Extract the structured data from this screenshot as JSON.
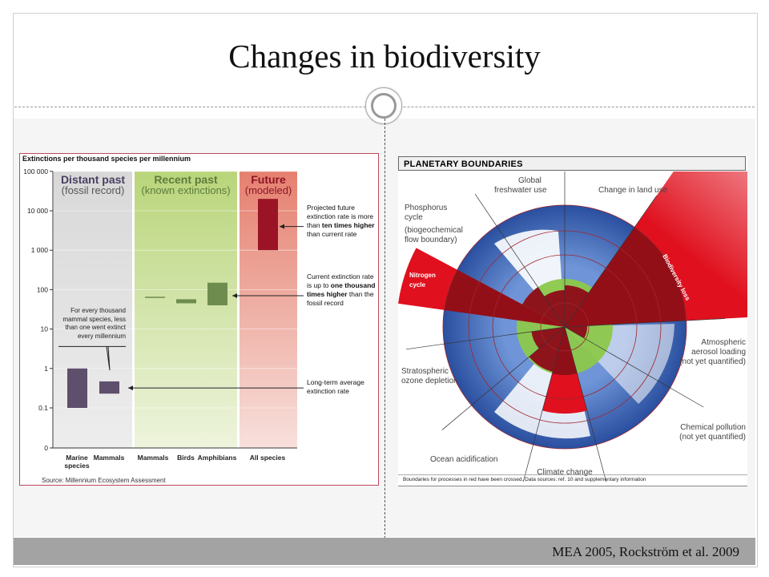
{
  "slide": {
    "title": "Changes in biodiversity",
    "citation": "MEA 2005, Rockström et al. 2009"
  },
  "chart_data": {
    "type": "bar",
    "title": "Extinctions per thousand species per millennium",
    "scale": "log",
    "ylim": [
      0,
      100000
    ],
    "yticks": [
      "100 000",
      "10 000",
      "1 000",
      "100",
      "10",
      "1",
      "0.1",
      "0"
    ],
    "panels": [
      {
        "title": "Distant past",
        "subtitle": "(fossil record)",
        "color": "#dcdcdc",
        "title_color": "#4a3f63"
      },
      {
        "title": "Recent past",
        "subtitle": "(known extinctions)",
        "color": "#c9dd95",
        "title_color": "#5e7c3c"
      },
      {
        "title": "Future",
        "subtitle": "(modeled)",
        "color": "#e99a8c",
        "title_color": "#8d1424"
      }
    ],
    "categories": [
      "Marine species",
      "Mammals",
      "Mammals",
      "Birds",
      "Amphibians",
      "All species"
    ],
    "ranges": [
      {
        "category": "Marine species",
        "panel": 0,
        "low": 0.1,
        "high": 1,
        "color": "#5e4f6c"
      },
      {
        "category": "Mammals",
        "panel": 0,
        "low": 0.23,
        "high": 0.47,
        "color": "#5e4f6c"
      },
      {
        "category": "Mammals",
        "panel": 1,
        "low": 64,
        "high": 66,
        "color": "#6f8c4f"
      },
      {
        "category": "Birds",
        "panel": 1,
        "low": 45,
        "high": 57,
        "color": "#6f8c4f"
      },
      {
        "category": "Amphibians",
        "panel": 1,
        "low": 40,
        "high": 150,
        "color": "#6f8c4f"
      },
      {
        "category": "All species",
        "panel": 2,
        "low": 1000,
        "high": 20000,
        "color": "#9a1426"
      }
    ],
    "annotations": [
      {
        "parts": [
          "Projected future extinction rate is more than ",
          "ten times higher",
          " than current rate"
        ]
      },
      {
        "parts": [
          "Current extinction rate is up to ",
          "one thousand times higher",
          " than the fossil record"
        ]
      },
      {
        "parts": [
          "Long-term average extinction rate",
          "",
          ""
        ]
      }
    ],
    "note": "For every thousand mammal species, less than one went extinct every millennium",
    "source": "Source: Millennium Ecosystem Assessment"
  },
  "diagram": {
    "header": "PLANETARY BOUNDARIES",
    "caption": "Boundaries for processes in red have been crossed. Data sources: ref. 10 and supplementary information",
    "labels": {
      "freshwater": [
        "Global",
        "freshwater use"
      ],
      "landuse": "Change in land use",
      "biodiversity": "Biodiversity loss",
      "aerosol": [
        "Atmospheric",
        "aerosol loading",
        "(not yet quantified)"
      ],
      "chemical": [
        "Chemical pollution",
        "(not yet quantified)"
      ],
      "climate": "Climate change",
      "ocean": "Ocean acidification",
      "ozone": [
        "Stratospheric",
        "ozone depletion"
      ],
      "phosphorus": [
        "Phosphorus",
        "cycle"
      ],
      "biogeo": [
        "(biogeochemical",
        "flow boundary)"
      ],
      "nitrogen": [
        "Nitrogen",
        "cycle"
      ]
    },
    "colors": {
      "ocean": "#3a63b4",
      "safe": "#8cc84b",
      "crossed": "#e0101e"
    }
  }
}
